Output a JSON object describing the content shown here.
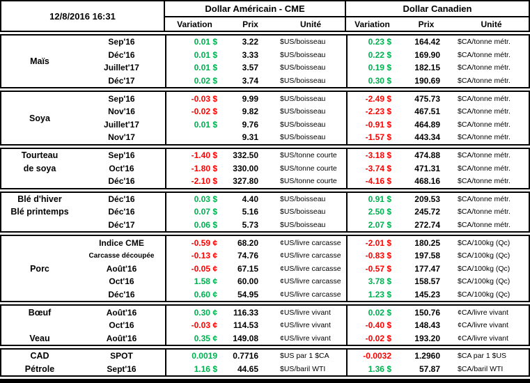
{
  "meta": {
    "timestamp": "12/8/2016 16:31"
  },
  "header": {
    "usd_title": "Dollar Américain - CME",
    "cad_title": "Dollar Canadien",
    "columns": [
      "Variation",
      "Prix",
      "Unité"
    ]
  },
  "colors": {
    "positive": "#00B050",
    "negative": "#FF0000"
  },
  "groups": [
    {
      "id": "mais",
      "labels": [
        {
          "text": "Maïs",
          "row": 1,
          "span": 4
        }
      ],
      "rows": [
        {
          "contract": "Sep'16",
          "us_var": "0.01 $",
          "us_prix": "3.22",
          "us_unit": "$US/boisseau",
          "ca_var": "0.23 $",
          "ca_prix": "164.42",
          "ca_unit": "$CA/tonne métr."
        },
        {
          "contract": "Déc'16",
          "us_var": "0.01 $",
          "us_prix": "3.33",
          "us_unit": "$US/boisseau",
          "ca_var": "0.22 $",
          "ca_prix": "169.90",
          "ca_unit": "$CA/tonne métr."
        },
        {
          "contract": "Juillet'17",
          "us_var": "0.01 $",
          "us_prix": "3.57",
          "us_unit": "$US/boisseau",
          "ca_var": "0.19 $",
          "ca_prix": "182.15",
          "ca_unit": "$CA/tonne métr."
        },
        {
          "contract": "Déc'17",
          "us_var": "0.02 $",
          "us_prix": "3.74",
          "us_unit": "$US/boisseau",
          "ca_var": "0.30 $",
          "ca_prix": "190.69",
          "ca_unit": "$CA/tonne métr."
        }
      ]
    },
    {
      "id": "soya",
      "labels": [
        {
          "text": "Soya",
          "row": 1,
          "span": 4
        }
      ],
      "rows": [
        {
          "contract": "Sep'16",
          "us_var": "-0.03 $",
          "us_prix": "9.99",
          "us_unit": "$US/boisseau",
          "ca_var": "-2.49 $",
          "ca_prix": "475.73",
          "ca_unit": "$CA/tonne métr."
        },
        {
          "contract": "Nov'16",
          "us_var": "-0.02 $",
          "us_prix": "9.82",
          "us_unit": "$US/boisseau",
          "ca_var": "-2.23 $",
          "ca_prix": "467.51",
          "ca_unit": "$CA/tonne métr."
        },
        {
          "contract": "Juillet'17",
          "us_var": "0.01 $",
          "us_prix": "9.76",
          "us_unit": "$US/boisseau",
          "ca_var": "-0.91 $",
          "ca_prix": "464.89",
          "ca_unit": "$CA/tonne métr."
        },
        {
          "contract": "Nov'17",
          "us_var": "",
          "us_prix": "9.31",
          "us_unit": "$US/boisseau",
          "ca_var": "-1.57 $",
          "ca_prix": "443.34",
          "ca_unit": "$CA/tonne métr."
        }
      ]
    },
    {
      "id": "tourteau-de-soya",
      "labels": [
        {
          "text": "Tourteau",
          "row": 1
        },
        {
          "text": "de soya",
          "row": 2
        }
      ],
      "rows": [
        {
          "contract": "Sep'16",
          "us_var": "-1.40 $",
          "us_prix": "332.50",
          "us_unit": "$US/tonne courte",
          "ca_var": "-3.18 $",
          "ca_prix": "474.88",
          "ca_unit": "$CA/tonne métr."
        },
        {
          "contract": "Oct'16",
          "us_var": "-1.80 $",
          "us_prix": "330.00",
          "us_unit": "$US/tonne courte",
          "ca_var": "-3.74 $",
          "ca_prix": "471.31",
          "ca_unit": "$CA/tonne métr."
        },
        {
          "contract": "Déc'16",
          "us_var": "-2.10 $",
          "us_prix": "327.80",
          "us_unit": "$US/tonne courte",
          "ca_var": "-4.16 $",
          "ca_prix": "468.16",
          "ca_unit": "$CA/tonne métr."
        }
      ]
    },
    {
      "id": "ble",
      "labels": [
        {
          "text": "Blé d'hiver",
          "row": 1
        },
        {
          "text": "Blé printemps",
          "row": 2
        }
      ],
      "rows": [
        {
          "contract": "Déc'16",
          "us_var": "0.03 $",
          "us_prix": "4.40",
          "us_unit": "$US/boisseau",
          "ca_var": "0.91 $",
          "ca_prix": "209.53",
          "ca_unit": "$CA/tonne métr."
        },
        {
          "contract": "Déc'16",
          "us_var": "0.07 $",
          "us_prix": "5.16",
          "us_unit": "$US/boisseau",
          "ca_var": "2.50 $",
          "ca_prix": "245.72",
          "ca_unit": "$CA/tonne métr."
        },
        {
          "contract": "Déc'17",
          "us_var": "0.06 $",
          "us_prix": "5.73",
          "us_unit": "$US/boisseau",
          "ca_var": "2.07 $",
          "ca_prix": "272.74",
          "ca_unit": "$CA/tonne métr."
        }
      ]
    },
    {
      "id": "porc",
      "labels": [
        {
          "text": "Porc",
          "row": 1,
          "span": 5
        }
      ],
      "rows": [
        {
          "contract": "Indice CME",
          "us_var": "-0.59 ¢",
          "us_prix": "68.20",
          "us_unit": "¢US/livre carcasse",
          "ca_var": "-2.01 $",
          "ca_prix": "180.25",
          "ca_unit": "$CA/100kg (Qc)"
        },
        {
          "contract": "Carcasse découpée",
          "small": true,
          "us_var": "-0.13 ¢",
          "us_prix": "74.76",
          "us_unit": "¢US/livre carcasse",
          "ca_var": "-0.83 $",
          "ca_prix": "197.58",
          "ca_unit": "$CA/100kg (Qc)"
        },
        {
          "contract": "Août'16",
          "us_var": "-0.05 ¢",
          "us_prix": "67.15",
          "us_unit": "¢US/livre carcasse",
          "ca_var": "-0.57 $",
          "ca_prix": "177.47",
          "ca_unit": "$CA/100kg (Qc)"
        },
        {
          "contract": "Oct'16",
          "us_var": "1.58 ¢",
          "us_prix": "60.00",
          "us_unit": "¢US/livre carcasse",
          "ca_var": "3.78 $",
          "ca_prix": "158.57",
          "ca_unit": "$CA/100kg (Qc)"
        },
        {
          "contract": "Déc'16",
          "us_var": "0.60 ¢",
          "us_prix": "54.95",
          "us_unit": "¢US/livre carcasse",
          "ca_var": "1.23 $",
          "ca_prix": "145.23",
          "ca_unit": "$CA/100kg (Qc)"
        }
      ]
    },
    {
      "id": "boeuf-veau",
      "labels": [
        {
          "text": "Bœuf",
          "row": 1
        },
        {
          "text": "Veau",
          "row": 3
        }
      ],
      "rows": [
        {
          "contract": "Août'16",
          "us_var": "0.30 ¢",
          "us_prix": "116.33",
          "us_unit": "¢US/livre vivant",
          "ca_var": "0.02 $",
          "ca_prix": "150.76",
          "ca_unit": "¢CA/livre vivant"
        },
        {
          "contract": "Oct'16",
          "us_var": "-0.03 ¢",
          "us_prix": "114.53",
          "us_unit": "¢US/livre vivant",
          "ca_var": "-0.40 $",
          "ca_prix": "148.43",
          "ca_unit": "¢CA/livre vivant"
        },
        {
          "contract": "Août'16",
          "us_var": "0.35 ¢",
          "us_prix": "149.08",
          "us_unit": "¢US/livre vivant",
          "ca_var": "-0.02 $",
          "ca_prix": "193.20",
          "ca_unit": "¢CA/livre vivant"
        }
      ]
    },
    {
      "id": "cad-petrole",
      "labels": [
        {
          "text": "CAD",
          "row": 1
        },
        {
          "text": "Pétrole",
          "row": 2
        }
      ],
      "rows": [
        {
          "contract": "SPOT",
          "us_var": "0.0019",
          "us_prix": "0.7716",
          "us_unit": "$US par 1 $CA",
          "ca_var": "-0.0032",
          "ca_prix": "1.2960",
          "ca_unit": "$CA par 1 $US"
        },
        {
          "contract": "Sept'16",
          "us_var": "1.16 $",
          "us_prix": "44.65",
          "us_unit": "$US/baril WTI",
          "ca_var": "1.36 $",
          "ca_prix": "57.87",
          "ca_unit": "$CA/baril WTI"
        }
      ]
    }
  ]
}
